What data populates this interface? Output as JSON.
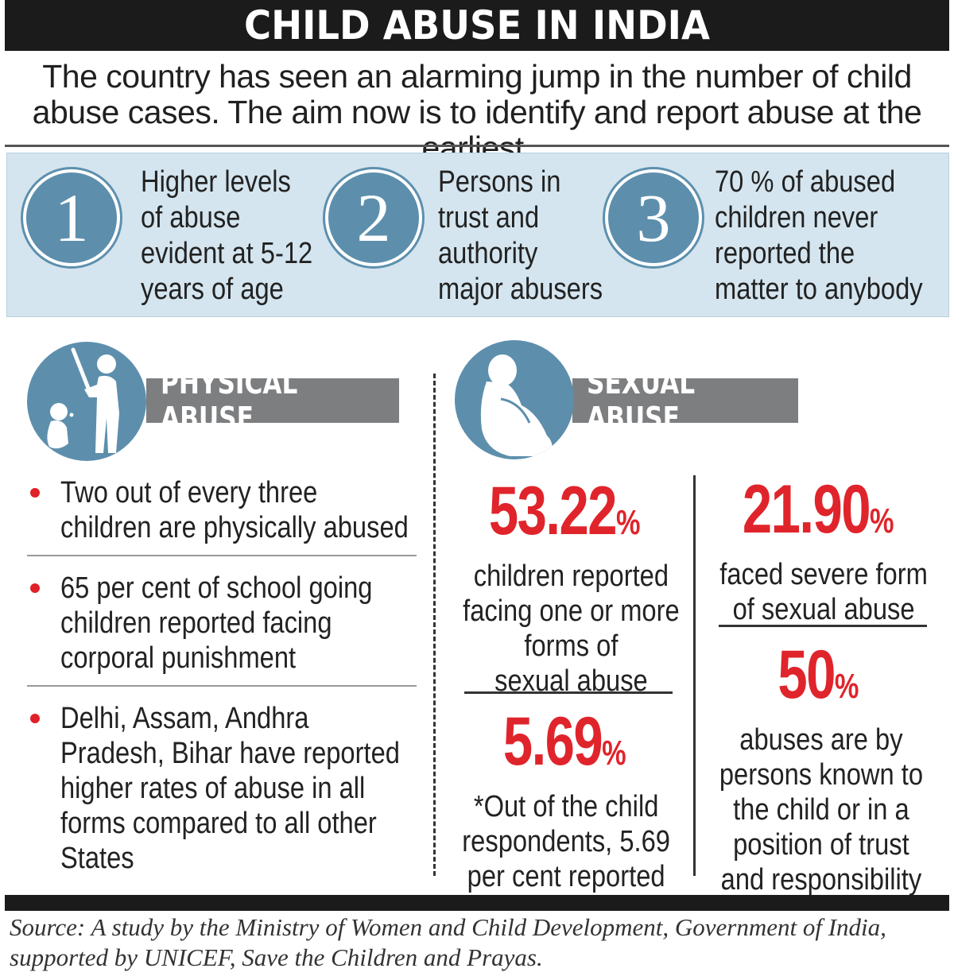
{
  "title": "CHILD ABUSE IN INDIA",
  "intro": "The country has seen an alarming jump in the number of child abuse cases. The aim now is to identify and report abuse at the earliest.",
  "facts": [
    {
      "number": "1",
      "lines": [
        "Higher levels",
        "of abuse",
        "evident at 5-12",
        "years of age"
      ]
    },
    {
      "number": "2",
      "lines": [
        "Persons in",
        "trust and",
        "authority",
        "major abusers"
      ]
    },
    {
      "number": "3",
      "lines": [
        "70 % of abused",
        "children never",
        "reported the",
        "matter to anybody"
      ]
    }
  ],
  "physical": {
    "label": "PHYSICAL ABUSE",
    "icon": "teacher-with-cane-icon",
    "bullets": [
      {
        "lines": [
          "Two out of every three",
          "children are physically abused"
        ]
      },
      {
        "lines": [
          "65 per cent of school going",
          "children reported facing",
          "corporal punishment"
        ]
      },
      {
        "lines": [
          "Delhi, Assam, Andhra",
          "Pradesh, Bihar have reported",
          "higher rates of abuse in all",
          "forms compared to all other",
          "States"
        ]
      }
    ]
  },
  "sexual": {
    "label": "SEXUAL ABUSE",
    "icon": "crouching-child-icon",
    "stats": [
      {
        "value": "53.22",
        "unit": "%",
        "lines": [
          "children reported",
          "facing one or more",
          "forms of",
          "sexual abuse"
        ]
      },
      {
        "value": "5.69",
        "unit": "%",
        "lines": [
          "*Out of the child",
          "respondents, 5.69",
          "per cent reported"
        ]
      },
      {
        "value": "21.90",
        "unit": "%",
        "lines": [
          "faced severe form",
          "of sexual abuse"
        ]
      },
      {
        "value": "50",
        "unit": "%",
        "lines": [
          "abuses are by",
          "persons known to",
          "the child or in a",
          "position of trust",
          "and responsibility"
        ]
      }
    ]
  },
  "source": "Source: A study by the Ministry of Women and Child Development, Government of India, supported by UNICEF, Save the Children and Prayas.",
  "colors": {
    "accent_red": "#e0242b",
    "circle_blue": "#5d8fad",
    "panel_blue": "#d4e5ef",
    "label_gray": "#7d7e80"
  }
}
